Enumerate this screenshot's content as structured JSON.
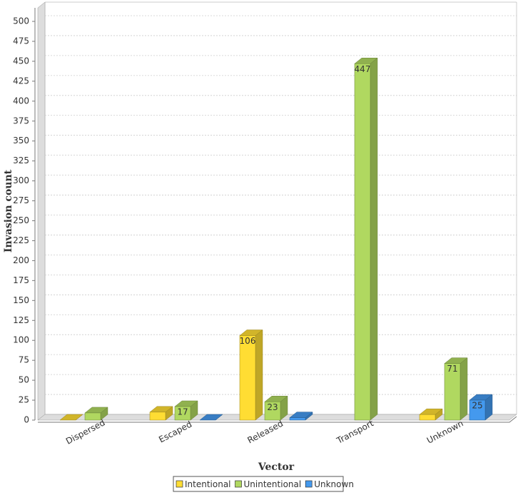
{
  "chart_data": {
    "type": "bar3d",
    "x_label": "Vector",
    "y_label": "Invasion count",
    "categories": [
      "Dispersed",
      "Escaped",
      "Released",
      "Transport",
      "Unknown"
    ],
    "series": [
      {
        "name": "Intentional",
        "color": "#ffdd33",
        "values": [
          0,
          10,
          106,
          null,
          7
        ]
      },
      {
        "name": "Unintentional",
        "color": "#b0d860",
        "values": [
          9,
          17,
          23,
          447,
          71
        ]
      },
      {
        "name": "Unknown",
        "color": "#4499ee",
        "values": [
          null,
          0,
          3,
          null,
          25
        ]
      }
    ],
    "ylim": [
      0,
      500
    ],
    "yticks": [
      0,
      25,
      50,
      75,
      100,
      125,
      150,
      175,
      200,
      225,
      250,
      275,
      300,
      325,
      350,
      375,
      400,
      425,
      450,
      475,
      500
    ],
    "grid": true,
    "legend": "bottom"
  }
}
